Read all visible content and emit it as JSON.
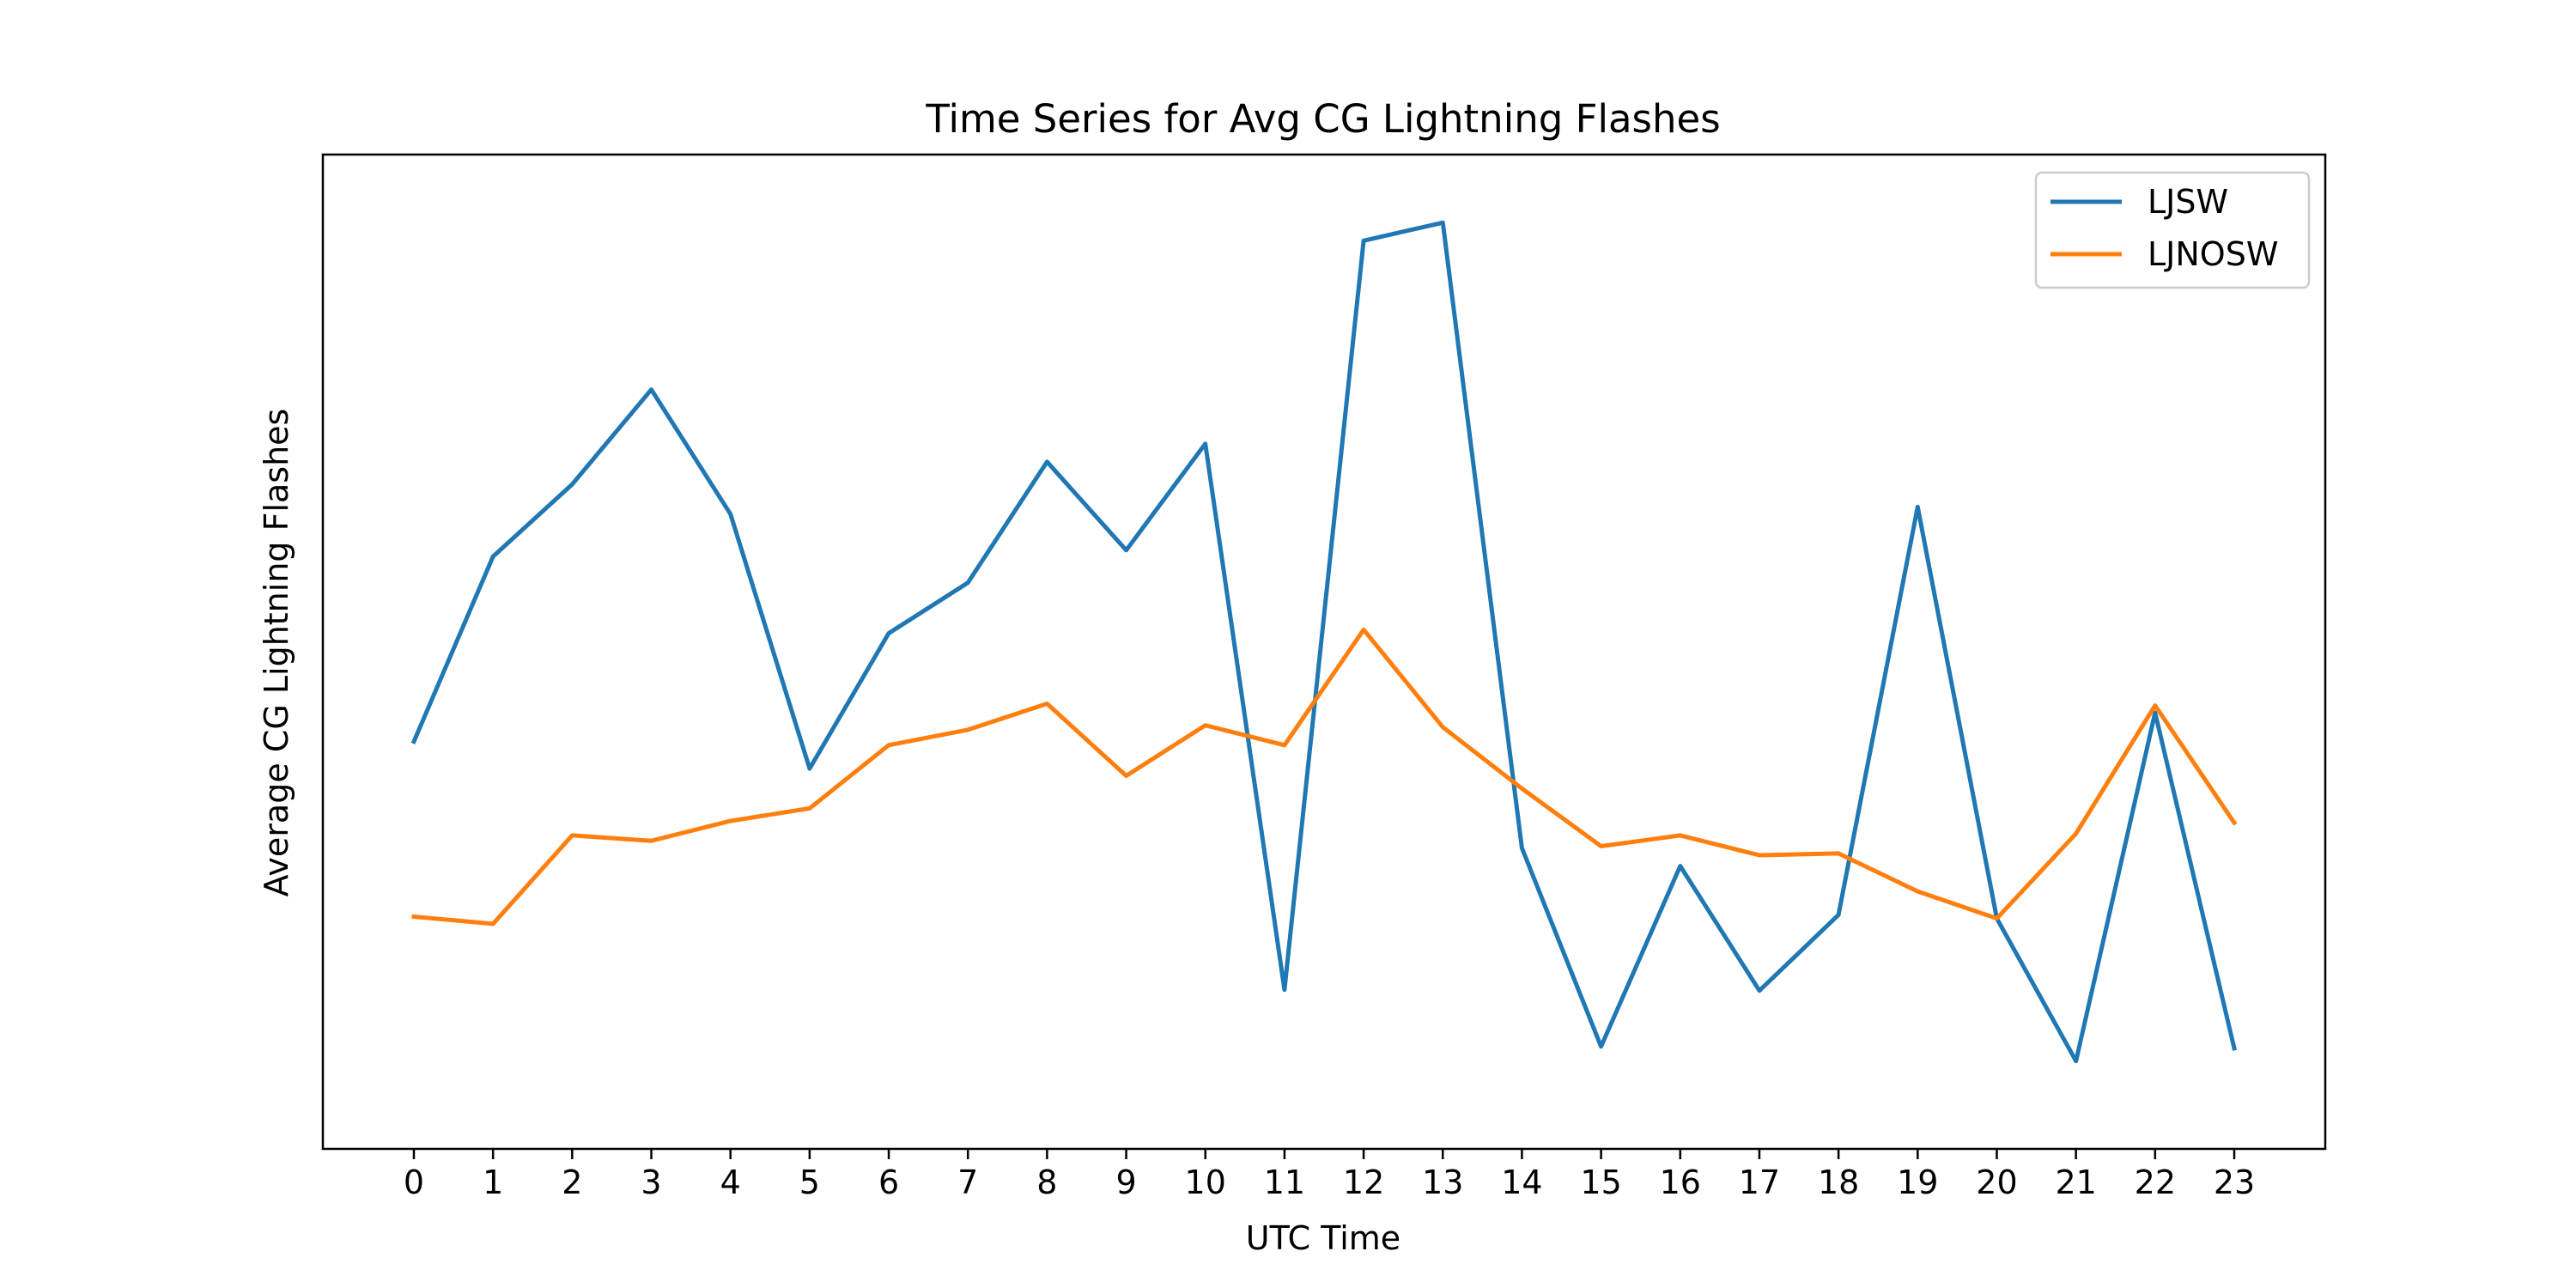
{
  "chart_data": {
    "type": "line",
    "title": "Time Series for Avg CG Lightning Flashes",
    "xlabel": "UTC Time",
    "ylabel": "Average CG Lightning Flashes",
    "x": [
      0,
      1,
      2,
      3,
      4,
      5,
      6,
      7,
      8,
      9,
      10,
      11,
      12,
      13,
      14,
      15,
      16,
      17,
      18,
      19,
      20,
      21,
      22,
      23
    ],
    "xlim": [
      -1.15,
      24.15
    ],
    "ylim": [
      0,
      1
    ],
    "y_ticks_shown": false,
    "grid": false,
    "legend": "top-right",
    "series": [
      {
        "name": "LJSW",
        "color": "#1f77b4",
        "values": [
          0.4,
          0.605,
          0.685,
          0.79,
          0.652,
          0.37,
          0.52,
          0.576,
          0.71,
          0.612,
          0.73,
          0.125,
          0.955,
          0.975,
          0.282,
          0.062,
          0.262,
          0.124,
          0.208,
          0.66,
          0.204,
          0.046,
          0.432,
          0.06
        ]
      },
      {
        "name": "LJNOSW",
        "color": "#ff7f0e",
        "values": [
          0.206,
          0.198,
          0.296,
          0.29,
          0.312,
          0.326,
          0.396,
          0.413,
          0.442,
          0.362,
          0.418,
          0.396,
          0.524,
          0.416,
          0.348,
          0.284,
          0.296,
          0.274,
          0.276,
          0.234,
          0.204,
          0.298,
          0.44,
          0.31
        ]
      }
    ]
  }
}
